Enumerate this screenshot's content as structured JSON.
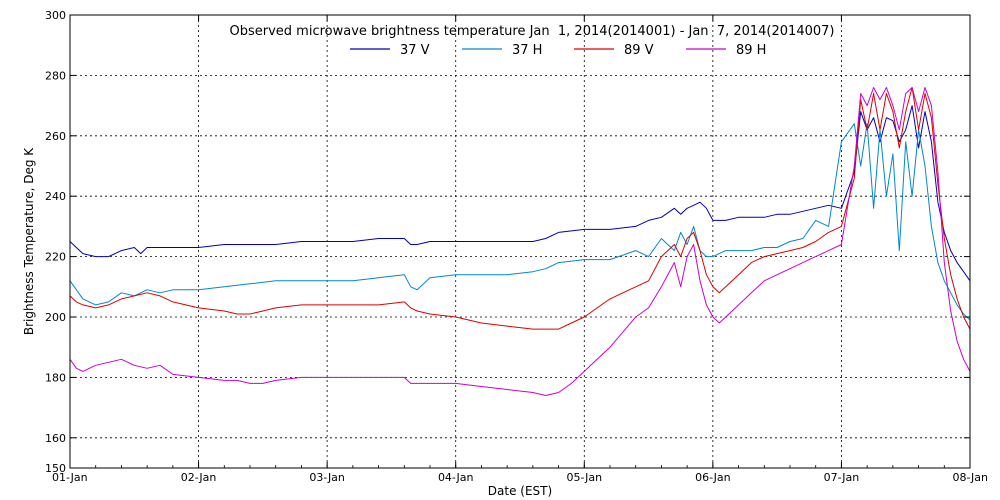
{
  "chart_data": {
    "type": "line",
    "title": "Observed microwave brightness temperature Jan  1, 2014(2014001) - Jan  7, 2014(2014007)",
    "xlabel": "Date (EST)",
    "ylabel": "Brightness Temperature, Deg K",
    "ylim": [
      150,
      300
    ],
    "yticks": [
      150,
      160,
      180,
      200,
      220,
      240,
      260,
      280,
      300
    ],
    "ytick_labels": [
      "150",
      "160",
      "180",
      "200",
      "220",
      "240",
      "260",
      "280",
      "300"
    ],
    "xlim": [
      0,
      7
    ],
    "xticks": [
      0,
      1,
      2,
      3,
      4,
      5,
      6,
      7
    ],
    "xtick_labels": [
      "01-Jan",
      "02-Jan",
      "03-Jan",
      "04-Jan",
      "05-Jan",
      "06-Jan",
      "07-Jan",
      "08-Jan"
    ],
    "grid": true,
    "legend_position": "top-center",
    "series": [
      {
        "name": "37 V",
        "color": "#0000bb",
        "x": [
          0.0,
          0.1,
          0.2,
          0.3,
          0.4,
          0.5,
          0.55,
          0.6,
          0.7,
          0.8,
          1.0,
          1.2,
          1.4,
          1.6,
          1.8,
          2.0,
          2.2,
          2.4,
          2.6,
          2.65,
          2.7,
          2.8,
          3.0,
          3.2,
          3.4,
          3.6,
          3.7,
          3.8,
          4.0,
          4.2,
          4.4,
          4.5,
          4.6,
          4.7,
          4.75,
          4.8,
          4.85,
          4.9,
          4.95,
          5.0,
          5.05,
          5.1,
          5.2,
          5.3,
          5.4,
          5.5,
          5.6,
          5.7,
          5.8,
          5.9,
          6.0,
          6.1,
          6.15,
          6.2,
          6.25,
          6.3,
          6.35,
          6.4,
          6.45,
          6.5,
          6.55,
          6.6,
          6.65,
          6.7,
          6.75,
          6.8,
          6.85,
          6.9,
          6.95,
          7.0
        ],
        "y": [
          225,
          221,
          220,
          220,
          222,
          223,
          221,
          223,
          223,
          223,
          223,
          224,
          224,
          224,
          225,
          225,
          225,
          226,
          226,
          224,
          224,
          225,
          225,
          225,
          225,
          225,
          226,
          228,
          229,
          229,
          230,
          232,
          233,
          236,
          234,
          236,
          237,
          238,
          236,
          232,
          232,
          232,
          233,
          233,
          233,
          234,
          234,
          235,
          236,
          237,
          236,
          248,
          268,
          262,
          266,
          258,
          266,
          265,
          258,
          262,
          270,
          256,
          268,
          258,
          238,
          228,
          222,
          218,
          215,
          212
        ]
      },
      {
        "name": "37 H",
        "color": "#0088cc",
        "x": [
          0.0,
          0.05,
          0.1,
          0.2,
          0.3,
          0.4,
          0.5,
          0.6,
          0.7,
          0.8,
          1.0,
          1.2,
          1.4,
          1.6,
          1.8,
          2.0,
          2.2,
          2.4,
          2.6,
          2.65,
          2.7,
          2.75,
          2.8,
          3.0,
          3.2,
          3.4,
          3.6,
          3.7,
          3.8,
          4.0,
          4.2,
          4.4,
          4.5,
          4.6,
          4.7,
          4.75,
          4.8,
          4.85,
          4.9,
          4.95,
          5.0,
          5.05,
          5.1,
          5.2,
          5.3,
          5.4,
          5.5,
          5.6,
          5.7,
          5.8,
          5.9,
          6.0,
          6.1,
          6.15,
          6.2,
          6.25,
          6.3,
          6.35,
          6.4,
          6.45,
          6.5,
          6.55,
          6.6,
          6.65,
          6.7,
          6.75,
          6.8,
          6.85,
          6.9,
          6.95,
          7.0
        ],
        "y": [
          212,
          209,
          206,
          204,
          205,
          208,
          207,
          209,
          208,
          209,
          209,
          210,
          211,
          212,
          212,
          212,
          212,
          213,
          214,
          210,
          209,
          211,
          213,
          214,
          214,
          214,
          215,
          216,
          218,
          219,
          219,
          222,
          220,
          226,
          222,
          228,
          224,
          230,
          222,
          220,
          220,
          221,
          222,
          222,
          222,
          223,
          223,
          225,
          226,
          232,
          230,
          258,
          264,
          250,
          264,
          236,
          262,
          240,
          254,
          222,
          258,
          240,
          262,
          250,
          230,
          218,
          212,
          208,
          204,
          201,
          199
        ]
      },
      {
        "name": "89 V",
        "color": "#dd0000",
        "x": [
          0.0,
          0.05,
          0.1,
          0.2,
          0.3,
          0.4,
          0.5,
          0.6,
          0.7,
          0.8,
          1.0,
          1.2,
          1.3,
          1.4,
          1.5,
          1.6,
          1.8,
          2.0,
          2.2,
          2.4,
          2.6,
          2.65,
          2.7,
          2.8,
          3.0,
          3.2,
          3.4,
          3.6,
          3.7,
          3.8,
          3.9,
          4.0,
          4.1,
          4.2,
          4.3,
          4.4,
          4.5,
          4.6,
          4.7,
          4.75,
          4.8,
          4.85,
          4.9,
          4.95,
          5.0,
          5.05,
          5.1,
          5.2,
          5.3,
          5.4,
          5.5,
          5.6,
          5.7,
          5.8,
          5.9,
          6.0,
          6.1,
          6.15,
          6.2,
          6.25,
          6.3,
          6.35,
          6.4,
          6.45,
          6.5,
          6.55,
          6.6,
          6.65,
          6.7,
          6.75,
          6.8,
          6.85,
          6.9,
          6.95,
          7.0
        ],
        "y": [
          207,
          205,
          204,
          203,
          204,
          206,
          207,
          208,
          207,
          205,
          203,
          202,
          201,
          201,
          202,
          203,
          204,
          204,
          204,
          204,
          205,
          203,
          202,
          201,
          200,
          198,
          197,
          196,
          196,
          196,
          198,
          200,
          203,
          206,
          208,
          210,
          212,
          220,
          224,
          220,
          226,
          228,
          222,
          214,
          210,
          208,
          210,
          214,
          218,
          220,
          221,
          222,
          223,
          225,
          228,
          230,
          246,
          272,
          262,
          274,
          262,
          274,
          268,
          256,
          268,
          276,
          262,
          274,
          266,
          244,
          226,
          214,
          206,
          200,
          196
        ]
      },
      {
        "name": "89 H",
        "color": "#cc00cc",
        "x": [
          0.0,
          0.05,
          0.1,
          0.2,
          0.3,
          0.4,
          0.5,
          0.6,
          0.7,
          0.8,
          1.0,
          1.2,
          1.3,
          1.4,
          1.5,
          1.6,
          1.8,
          2.0,
          2.2,
          2.4,
          2.6,
          2.65,
          2.7,
          2.8,
          3.0,
          3.2,
          3.4,
          3.6,
          3.7,
          3.8,
          3.9,
          4.0,
          4.1,
          4.2,
          4.3,
          4.4,
          4.5,
          4.6,
          4.7,
          4.75,
          4.8,
          4.85,
          4.9,
          4.95,
          5.0,
          5.05,
          5.1,
          5.2,
          5.3,
          5.4,
          5.5,
          5.6,
          5.7,
          5.8,
          5.9,
          6.0,
          6.1,
          6.15,
          6.2,
          6.25,
          6.3,
          6.35,
          6.4,
          6.45,
          6.5,
          6.55,
          6.6,
          6.65,
          6.7,
          6.75,
          6.8,
          6.85,
          6.9,
          6.95,
          7.0
        ],
        "y": [
          186,
          183,
          182,
          184,
          185,
          186,
          184,
          183,
          184,
          181,
          180,
          179,
          179,
          178,
          178,
          179,
          180,
          180,
          180,
          180,
          180,
          178,
          178,
          178,
          178,
          177,
          176,
          175,
          174,
          175,
          178,
          182,
          186,
          190,
          195,
          200,
          203,
          210,
          218,
          210,
          220,
          224,
          212,
          204,
          200,
          198,
          200,
          204,
          208,
          212,
          214,
          216,
          218,
          220,
          222,
          224,
          250,
          274,
          270,
          276,
          272,
          276,
          270,
          262,
          274,
          276,
          268,
          276,
          270,
          248,
          218,
          202,
          192,
          186,
          182
        ]
      }
    ]
  }
}
